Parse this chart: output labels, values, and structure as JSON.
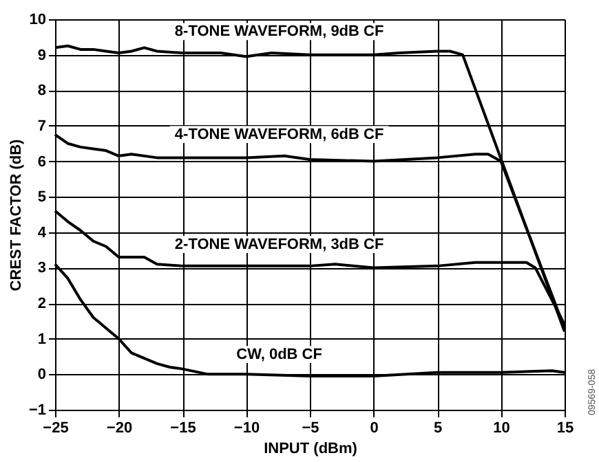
{
  "chart_data": {
    "type": "line",
    "xlabel": "INPUT (dBm)",
    "ylabel": "CREST FACTOR (dB)",
    "xlim": [
      -25,
      15
    ],
    "xticks": [
      -25,
      -20,
      -15,
      -10,
      -5,
      0,
      5,
      10,
      15
    ],
    "ylim": [
      -1,
      10
    ],
    "yticks": [
      -1,
      0,
      1,
      2,
      3,
      4,
      5,
      6,
      7,
      8,
      9,
      10
    ],
    "grid": true,
    "legend": false,
    "line_style": "solid",
    "marker": "none",
    "series": [
      {
        "name": "8-TONE WAVEFORM, 9dB CF",
        "color": "#000000",
        "x": [
          -25,
          -24,
          -23,
          -22,
          -21,
          -20,
          -19,
          -18,
          -17,
          -15,
          -12,
          -10,
          -8,
          -5,
          0,
          2,
          5,
          6,
          7,
          15
        ],
        "values": [
          9.2,
          9.25,
          9.15,
          9.15,
          9.1,
          9.05,
          9.1,
          9.2,
          9.1,
          9.05,
          9.05,
          8.95,
          9.05,
          9.0,
          9.0,
          9.05,
          9.1,
          9.1,
          9.0,
          1.2
        ]
      },
      {
        "name": "4-TONE WAVEFORM, 6dB CF",
        "color": "#000000",
        "x": [
          -25,
          -24,
          -23,
          -22,
          -21,
          -20,
          -19,
          -17,
          -10,
          -7,
          -5,
          0,
          5,
          8,
          9,
          10,
          15
        ],
        "values": [
          6.75,
          6.5,
          6.4,
          6.35,
          6.3,
          6.15,
          6.2,
          6.1,
          6.1,
          6.15,
          6.05,
          6.0,
          6.1,
          6.2,
          6.2,
          6.0,
          1.3
        ]
      },
      {
        "name": "2-TONE WAVEFORM, 3dB CF",
        "color": "#000000",
        "x": [
          -25,
          -24,
          -23,
          -22,
          -21,
          -20,
          -18,
          -17,
          -15,
          -10,
          -5,
          -3,
          0,
          5,
          8,
          12,
          12.7,
          15
        ],
        "values": [
          4.6,
          4.3,
          4.05,
          3.75,
          3.6,
          3.3,
          3.3,
          3.1,
          3.05,
          3.05,
          3.05,
          3.1,
          3.0,
          3.05,
          3.15,
          3.15,
          3.0,
          1.4
        ]
      },
      {
        "name": "CW, 0dB CF",
        "color": "#000000",
        "x": [
          -25,
          -24,
          -23,
          -22,
          -21,
          -20,
          -19,
          -18,
          -17,
          -16,
          -15,
          -13,
          -10,
          -5,
          0,
          5,
          10,
          14,
          15
        ],
        "values": [
          3.1,
          2.7,
          2.1,
          1.6,
          1.3,
          1.0,
          0.6,
          0.45,
          0.3,
          0.2,
          0.15,
          0.0,
          0.0,
          -0.05,
          -0.05,
          0.05,
          0.05,
          0.1,
          0.05
        ]
      }
    ],
    "annotations": [
      "09569-058"
    ]
  }
}
